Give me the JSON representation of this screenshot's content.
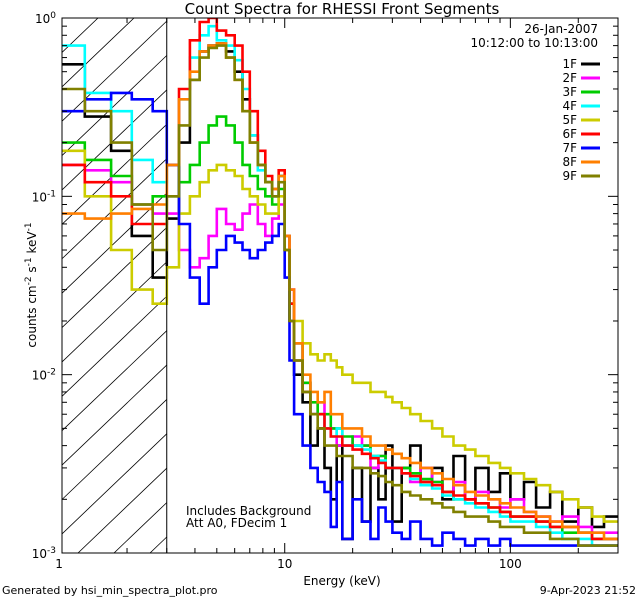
{
  "chart_data": {
    "type": "line",
    "title": "Count Spectra for RHESSI Front Segments",
    "xlabel": "Energy (keV)",
    "ylabel_parts": [
      "counts cm",
      "-2",
      " s",
      "-1",
      " keV",
      "-1"
    ],
    "xscale": "log",
    "yscale": "log",
    "xlim": [
      1.03,
      300
    ],
    "ylim": [
      0.001,
      1.0
    ],
    "x_tick_labels": [
      {
        "value": 1,
        "label": "1"
      },
      {
        "value": 10,
        "label": "10"
      },
      {
        "value": 100,
        "label": "100"
      }
    ],
    "y_tick_labels": [
      {
        "value": 1,
        "base": "10",
        "exp": "0"
      },
      {
        "value": 0.1,
        "base": "10",
        "exp": "-1"
      },
      {
        "value": 0.01,
        "base": "10",
        "exp": "-2"
      },
      {
        "value": 0.001,
        "base": "10",
        "exp": "-3"
      }
    ],
    "attenuator_cutoff_keV": 3.0,
    "shaded_region": "below 3 keV (hatched)",
    "date": "26-Jan-2007",
    "time_range": "10:12:00 to 10:13:00",
    "annotations": [
      "Includes Background",
      "Att A0, FDecim 1"
    ],
    "legend_position": "top-right",
    "energy_bins_keV": [
      1.0,
      1.3,
      1.7,
      2.1,
      2.6,
      3.0,
      3.4,
      3.8,
      4.2,
      4.6,
      5.0,
      5.5,
      6.0,
      6.5,
      7.0,
      7.6,
      8.2,
      8.8,
      9.4,
      10.0,
      10.5,
      11.0,
      12.0,
      13.0,
      14.0,
      15.0,
      16.0,
      17.0,
      18.0,
      20.0,
      22.0,
      24.0,
      26.0,
      28.0,
      30.0,
      33.0,
      36.0,
      40.0,
      45.0,
      50.0,
      56.0,
      63.0,
      70.0,
      80.0,
      90.0,
      100.0,
      115.0,
      130.0,
      150.0,
      170.0,
      200.0,
      230.0,
      260.0,
      300.0
    ],
    "series": [
      {
        "name": "1F",
        "color": "#000000",
        "values": [
          0.55,
          0.28,
          0.18,
          0.06,
          0.035,
          0.075,
          0.2,
          0.45,
          0.65,
          0.7,
          0.72,
          0.65,
          0.5,
          0.35,
          0.22,
          0.15,
          0.12,
          0.1,
          0.13,
          0.05,
          0.02,
          0.01,
          0.007,
          0.004,
          0.005,
          0.003,
          0.002,
          0.004,
          0.0012,
          0.003,
          0.0015,
          0.003,
          0.002,
          0.004,
          0.0015,
          0.003,
          0.004,
          0.0025,
          0.003,
          0.002,
          0.0035,
          0.002,
          0.003,
          0.0022,
          0.0028,
          0.002,
          0.0025,
          0.0018,
          0.0022,
          0.0015,
          0.0018,
          0.0014,
          0.0016
        ]
      },
      {
        "name": "2F",
        "color": "#ff00ff",
        "values": [
          0.15,
          0.14,
          0.12,
          0.09,
          0.08,
          0.08,
          0.05,
          0.04,
          0.045,
          0.06,
          0.085,
          0.07,
          0.065,
          0.08,
          0.09,
          0.07,
          0.06,
          0.075,
          0.09,
          0.05,
          0.03,
          0.015,
          0.009,
          0.006,
          0.007,
          0.005,
          0.005,
          0.004,
          0.004,
          0.0045,
          0.004,
          0.003,
          0.0035,
          0.003,
          0.003,
          0.0028,
          0.0025,
          0.003,
          0.0025,
          0.0022,
          0.0025,
          0.002,
          0.0022,
          0.002,
          0.0018,
          0.002,
          0.0017,
          0.0016,
          0.0015,
          0.0016,
          0.0014,
          0.0013,
          0.0013
        ]
      },
      {
        "name": "3F",
        "color": "#00cc00",
        "values": [
          0.2,
          0.16,
          0.13,
          0.09,
          0.1,
          0.1,
          0.12,
          0.15,
          0.2,
          0.25,
          0.28,
          0.25,
          0.2,
          0.15,
          0.13,
          0.11,
          0.1,
          0.09,
          0.11,
          0.05,
          0.025,
          0.015,
          0.009,
          0.007,
          0.006,
          0.006,
          0.005,
          0.005,
          0.0045,
          0.004,
          0.004,
          0.0035,
          0.0035,
          0.003,
          0.003,
          0.003,
          0.0028,
          0.0026,
          0.0025,
          0.0022,
          0.002,
          0.002,
          0.0019,
          0.0018,
          0.0017,
          0.0016,
          0.0016,
          0.0015,
          0.0014,
          0.0013,
          0.0013,
          0.0012,
          0.0012
        ]
      },
      {
        "name": "4F",
        "color": "#00ffff",
        "values": [
          0.7,
          0.38,
          0.3,
          0.16,
          0.12,
          0.15,
          0.35,
          0.6,
          0.8,
          0.9,
          0.75,
          0.7,
          0.58,
          0.4,
          0.22,
          0.14,
          0.12,
          0.1,
          0.13,
          0.06,
          0.025,
          0.012,
          0.008,
          0.006,
          0.006,
          0.005,
          0.0045,
          0.005,
          0.004,
          0.004,
          0.0038,
          0.0035,
          0.0033,
          0.003,
          0.003,
          0.0028,
          0.0026,
          0.0024,
          0.0023,
          0.0021,
          0.002,
          0.0019,
          0.0018,
          0.0017,
          0.0016,
          0.0015,
          0.0015,
          0.0014,
          0.0013,
          0.0012,
          0.0012,
          0.0011,
          0.0011
        ]
      },
      {
        "name": "5F",
        "color": "#cccc00",
        "values": [
          0.18,
          0.1,
          0.05,
          0.03,
          0.025,
          0.04,
          0.08,
          0.1,
          0.12,
          0.14,
          0.15,
          0.14,
          0.13,
          0.11,
          0.1,
          0.09,
          0.08,
          0.08,
          0.1,
          0.05,
          0.025,
          0.02,
          0.015,
          0.013,
          0.012,
          0.013,
          0.012,
          0.011,
          0.01,
          0.009,
          0.009,
          0.008,
          0.008,
          0.0075,
          0.007,
          0.0065,
          0.006,
          0.0055,
          0.005,
          0.0045,
          0.004,
          0.0038,
          0.0035,
          0.0032,
          0.003,
          0.0028,
          0.0026,
          0.0024,
          0.0022,
          0.002,
          0.0018,
          0.0016,
          0.0015
        ]
      },
      {
        "name": "6F",
        "color": "#ff0000",
        "values": [
          0.15,
          0.12,
          0.1,
          0.07,
          0.07,
          0.15,
          0.4,
          0.75,
          0.95,
          1.0,
          0.85,
          0.8,
          0.7,
          0.5,
          0.3,
          0.18,
          0.13,
          0.11,
          0.14,
          0.06,
          0.025,
          0.012,
          0.008,
          0.006,
          0.006,
          0.005,
          0.0045,
          0.0045,
          0.004,
          0.0038,
          0.0036,
          0.0034,
          0.0032,
          0.003,
          0.003,
          0.0028,
          0.0027,
          0.0025,
          0.0024,
          0.0022,
          0.0021,
          0.002,
          0.0019,
          0.0018,
          0.0017,
          0.0016,
          0.0016,
          0.0015,
          0.0014,
          0.0014,
          0.0013,
          0.0012,
          0.0012
        ]
      },
      {
        "name": "7F",
        "color": "#0000ff",
        "values": [
          0.3,
          0.35,
          0.38,
          0.35,
          0.3,
          0.15,
          0.07,
          0.035,
          0.025,
          0.04,
          0.05,
          0.06,
          0.055,
          0.05,
          0.045,
          0.05,
          0.055,
          0.06,
          0.07,
          0.035,
          0.012,
          0.006,
          0.004,
          0.003,
          0.0025,
          0.0022,
          0.0014,
          0.0025,
          0.0012,
          0.002,
          0.0015,
          0.0012,
          0.0018,
          0.0015,
          0.0013,
          0.0012,
          0.0015,
          0.0012,
          0.0011,
          0.0013,
          0.0012,
          0.0011,
          0.0012,
          0.0011,
          0.0012,
          0.0011,
          0.0011,
          0.0011,
          0.0011,
          0.0011,
          0.0011,
          0.0011,
          0.0011
        ]
      },
      {
        "name": "8F",
        "color": "#ff7f00",
        "values": [
          0.08,
          0.075,
          0.08,
          0.085,
          0.09,
          0.15,
          0.35,
          0.5,
          0.65,
          0.7,
          0.72,
          0.6,
          0.45,
          0.3,
          0.2,
          0.15,
          0.12,
          0.11,
          0.13,
          0.06,
          0.03,
          0.015,
          0.01,
          0.008,
          0.007,
          0.008,
          0.006,
          0.006,
          0.005,
          0.005,
          0.0045,
          0.004,
          0.004,
          0.0038,
          0.0036,
          0.0034,
          0.0032,
          0.003,
          0.0028,
          0.0026,
          0.0024,
          0.0022,
          0.0021,
          0.002,
          0.0019,
          0.0018,
          0.0017,
          0.0016,
          0.0015,
          0.0014,
          0.0013,
          0.0013,
          0.0012
        ]
      },
      {
        "name": "9F",
        "color": "#808000",
        "values": [
          0.4,
          0.3,
          0.2,
          0.09,
          0.05,
          0.1,
          0.25,
          0.45,
          0.6,
          0.68,
          0.7,
          0.6,
          0.45,
          0.3,
          0.2,
          0.15,
          0.12,
          0.1,
          0.12,
          0.05,
          0.02,
          0.012,
          0.008,
          0.006,
          0.005,
          0.004,
          0.004,
          0.0035,
          0.0035,
          0.003,
          0.003,
          0.0028,
          0.0027,
          0.0025,
          0.0024,
          0.0022,
          0.0021,
          0.002,
          0.0019,
          0.0018,
          0.0017,
          0.0016,
          0.0016,
          0.0015,
          0.0014,
          0.0014,
          0.0013,
          0.0013,
          0.0012,
          0.0012,
          0.0011,
          0.0011,
          0.0011
        ]
      }
    ]
  },
  "footer": {
    "left": "Generated by hsi_min_spectra_plot.pro",
    "right": "9-Apr-2023 21:52"
  }
}
